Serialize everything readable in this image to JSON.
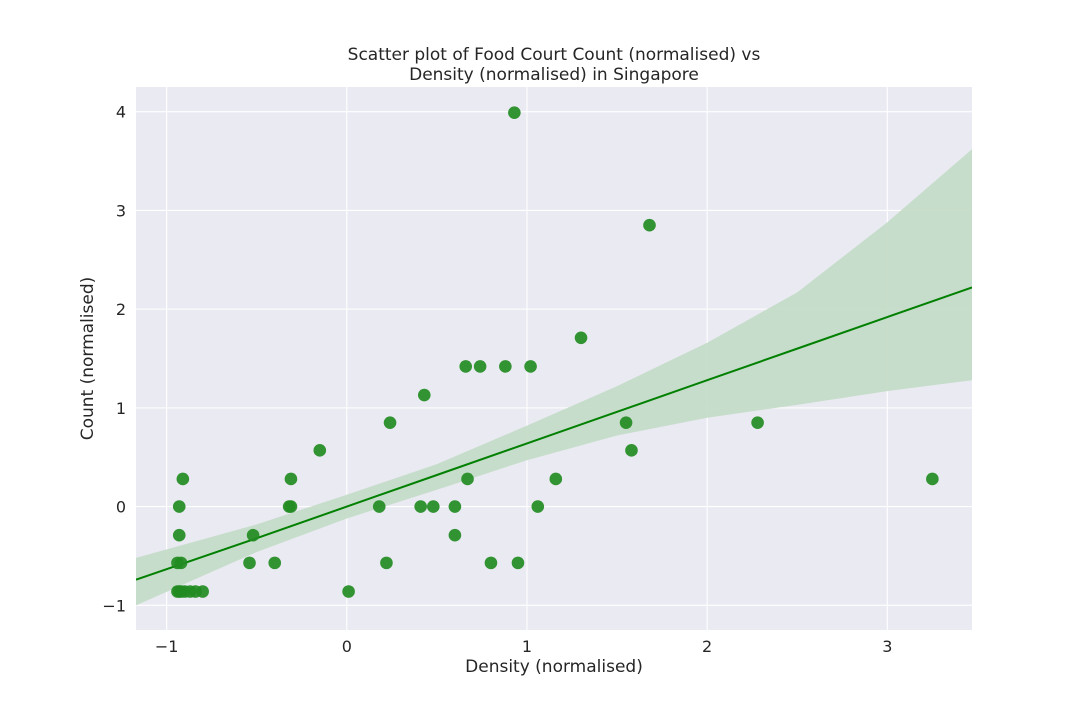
{
  "chart_data": {
    "type": "scatter",
    "title": [
      "Scatter plot of Food Court Count (normalised) vs",
      "Density (normalised) in Singapore"
    ],
    "xlabel": "Density (normalised)",
    "ylabel": "Count (normalised)",
    "xlim": [
      -1.17,
      3.47
    ],
    "ylim": [
      -1.25,
      4.25
    ],
    "xticks": [
      -1,
      0,
      1,
      2,
      3
    ],
    "xtick_labels": [
      "−1",
      "0",
      "1",
      "2",
      "3"
    ],
    "yticks": [
      -1,
      0,
      1,
      2,
      3,
      4
    ],
    "ytick_labels": [
      "−1",
      "0",
      "1",
      "2",
      "3",
      "4"
    ],
    "grid": true,
    "colors": {
      "background": "#eaeaf2",
      "grid": "#ffffff",
      "points": "#228b22",
      "regression_line": "#008000",
      "confidence_band": "#c5dcc8"
    },
    "points": [
      {
        "x": 0.93,
        "y": 3.99
      },
      {
        "x": 1.68,
        "y": 2.85
      },
      {
        "x": 1.3,
        "y": 1.71
      },
      {
        "x": 0.66,
        "y": 1.42
      },
      {
        "x": 0.74,
        "y": 1.42
      },
      {
        "x": 0.88,
        "y": 1.42
      },
      {
        "x": 1.02,
        "y": 1.42
      },
      {
        "x": 0.43,
        "y": 1.13
      },
      {
        "x": 0.24,
        "y": 0.85
      },
      {
        "x": 1.55,
        "y": 0.85
      },
      {
        "x": 2.28,
        "y": 0.85
      },
      {
        "x": -0.15,
        "y": 0.57
      },
      {
        "x": 1.58,
        "y": 0.57
      },
      {
        "x": -0.91,
        "y": 0.28
      },
      {
        "x": -0.31,
        "y": 0.28
      },
      {
        "x": 0.67,
        "y": 0.28
      },
      {
        "x": 1.16,
        "y": 0.28
      },
      {
        "x": 3.25,
        "y": 0.28
      },
      {
        "x": -0.93,
        "y": 0.0
      },
      {
        "x": -0.32,
        "y": 0.0
      },
      {
        "x": -0.31,
        "y": 0.0
      },
      {
        "x": 0.18,
        "y": 0.0
      },
      {
        "x": 0.41,
        "y": 0.0
      },
      {
        "x": 0.48,
        "y": 0.0
      },
      {
        "x": 0.6,
        "y": 0.0
      },
      {
        "x": 1.06,
        "y": 0.0
      },
      {
        "x": -0.93,
        "y": -0.29
      },
      {
        "x": -0.52,
        "y": -0.29
      },
      {
        "x": 0.6,
        "y": -0.29
      },
      {
        "x": -0.94,
        "y": -0.57
      },
      {
        "x": -0.92,
        "y": -0.57
      },
      {
        "x": -0.54,
        "y": -0.57
      },
      {
        "x": -0.4,
        "y": -0.57
      },
      {
        "x": 0.22,
        "y": -0.57
      },
      {
        "x": 0.8,
        "y": -0.57
      },
      {
        "x": 0.95,
        "y": -0.57
      },
      {
        "x": -0.94,
        "y": -0.86
      },
      {
        "x": -0.93,
        "y": -0.86
      },
      {
        "x": -0.92,
        "y": -0.86
      },
      {
        "x": -0.9,
        "y": -0.86
      },
      {
        "x": -0.87,
        "y": -0.86
      },
      {
        "x": -0.84,
        "y": -0.86
      },
      {
        "x": -0.8,
        "y": -0.86
      },
      {
        "x": 0.01,
        "y": -0.86
      }
    ],
    "regression": {
      "x": [
        -1.17,
        -0.5,
        0.0,
        0.5,
        1.0,
        1.5,
        2.0,
        2.5,
        3.0,
        3.47
      ],
      "y": [
        -0.74,
        -0.32,
        0.0,
        0.32,
        0.64,
        0.96,
        1.28,
        1.6,
        1.92,
        2.22
      ],
      "ci_lower": [
        -1.0,
        -0.46,
        -0.12,
        0.17,
        0.47,
        0.72,
        0.9,
        1.03,
        1.17,
        1.28
      ],
      "ci_upper": [
        -0.52,
        -0.18,
        0.12,
        0.43,
        0.82,
        1.22,
        1.66,
        2.17,
        2.88,
        3.62
      ]
    }
  }
}
